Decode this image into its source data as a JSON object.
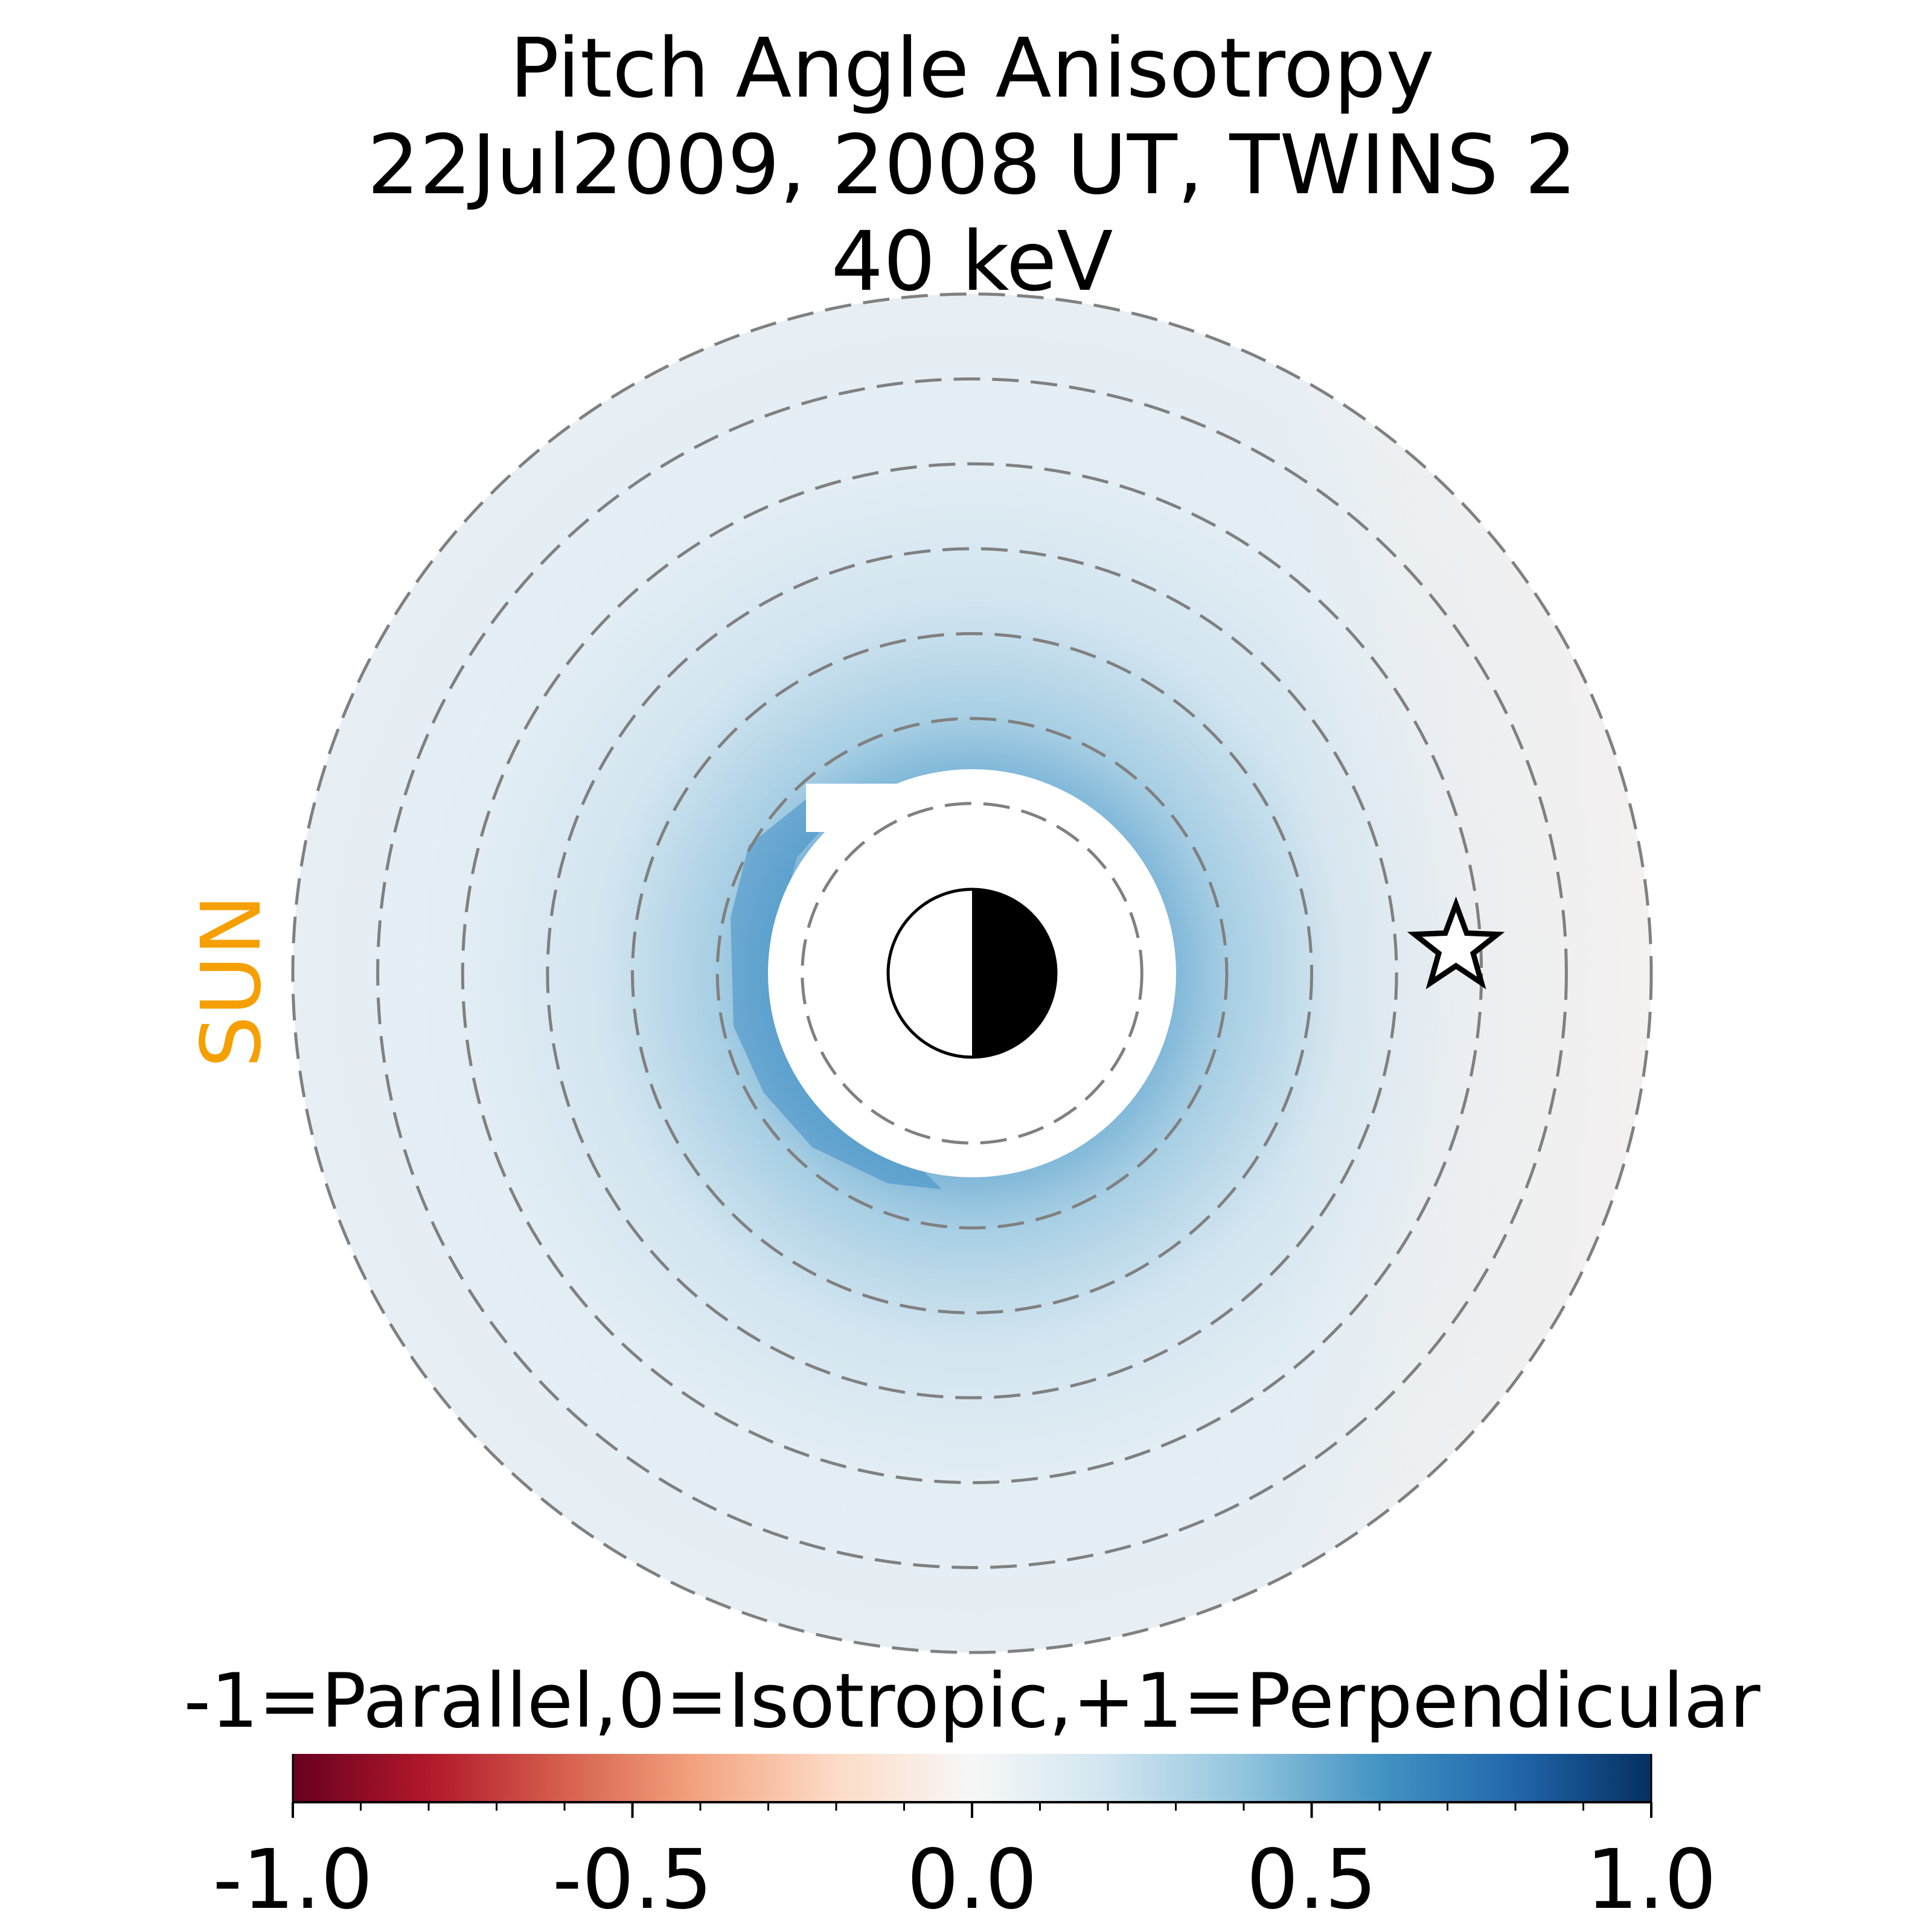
{
  "chart_data": {
    "type": "heatmap",
    "title_lines": [
      "Pitch Angle Anisotropy",
      "22Jul2009, 2008 UT,  TWINS 2",
      "40 keV"
    ],
    "sun_label": "SUN",
    "colorbar": {
      "label": "-1=Parallel,0=Isotropic,+1=Perpendicular",
      "range": [
        -1.0,
        1.0
      ],
      "ticks": [
        -1.0,
        -0.5,
        0.0,
        0.5,
        1.0
      ],
      "tick_labels": [
        "-1.0",
        "-0.5",
        "0.0",
        "0.5",
        "1.0"
      ],
      "colormap": "RdBu"
    },
    "dashed_rings_re": [
      2,
      3,
      4,
      5,
      6,
      7,
      8
    ],
    "outer_radius_re": 8,
    "inner_mask_radius_re": 2.4,
    "anisotropy_samples": {
      "radius_re": [
        2.5,
        3,
        4,
        5,
        6,
        7,
        8
      ],
      "dayside_values": [
        0.55,
        0.4,
        0.25,
        0.15,
        0.12,
        0.1,
        0.08
      ],
      "dawn_dusk_values": [
        0.5,
        0.4,
        0.25,
        0.15,
        0.1,
        0.07,
        0.05
      ],
      "nightside_values": [
        0.45,
        0.35,
        0.2,
        0.1,
        0.03,
        -0.01,
        -0.02
      ]
    },
    "spacecraft_marker": {
      "symbol": "star",
      "x_re": 5.7,
      "y_re": 0.3
    },
    "colors": {
      "sun_label": "#f5a000",
      "ring": "#808080",
      "earth_night": "#000000",
      "earth_day": "#ffffff"
    }
  }
}
